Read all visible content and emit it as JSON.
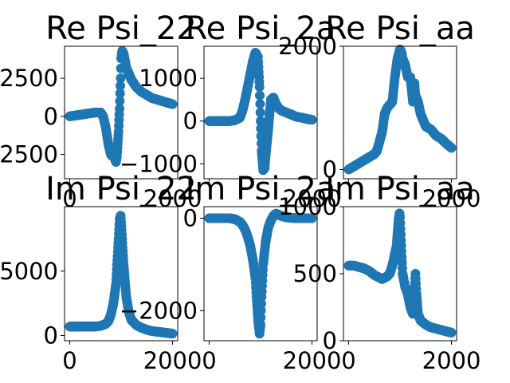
{
  "chart_data": [
    {
      "type": "scatter",
      "title": "Re Psi_22",
      "color": "#1f77b4",
      "xlim": [
        -100,
        2100
      ],
      "ylim": [
        -4100,
        4600
      ],
      "xticks": [
        {
          "value": 0,
          "label": "0"
        },
        {
          "value": 2000,
          "label": "2000"
        }
      ],
      "yticks": [
        {
          "value": -2500,
          "label": "−2500"
        },
        {
          "value": 0,
          "label": "0"
        },
        {
          "value": 2500,
          "label": "2500"
        }
      ],
      "series": [
        {
          "x": [
            0,
            100,
            200,
            300,
            400,
            500,
            600,
            650,
            700,
            750,
            800,
            820,
            850,
            880,
            900,
            920,
            950,
            970,
            990,
            1000,
            1020,
            1050,
            1100,
            1200,
            1300,
            1400,
            1500,
            1600,
            1700,
            1800,
            1900,
            2000
          ],
          "y": [
            0,
            50,
            100,
            150,
            200,
            250,
            250,
            0,
            -700,
            -1800,
            -2500,
            -2600,
            -2200,
            -2800,
            -3000,
            -2600,
            -1000,
            500,
            2500,
            3800,
            4300,
            4100,
            3200,
            2400,
            1900,
            1600,
            1400,
            1200,
            1100,
            1000,
            900,
            800
          ]
        }
      ]
    },
    {
      "type": "scatter",
      "title": "Re Psi_2a",
      "color": "#1f77b4",
      "xlim": [
        -100,
        2100
      ],
      "ylim": [
        -1350,
        1750
      ],
      "xticks": [
        {
          "value": 0,
          "label": ""
        },
        {
          "value": 2000,
          "label": "2000"
        }
      ],
      "yticks": [
        {
          "value": -1000,
          "label": "−1000"
        },
        {
          "value": 0,
          "label": "0"
        },
        {
          "value": 1000,
          "label": "1000"
        }
      ],
      "series": [
        {
          "x": [
            0,
            100,
            200,
            300,
            400,
            500,
            600,
            650,
            700,
            750,
            800,
            850,
            900,
            950,
            980,
            1000,
            1020,
            1050,
            1080,
            1100,
            1150,
            1200,
            1250,
            1300,
            1350,
            1400,
            1500,
            1600,
            1700,
            1800,
            1900,
            2000
          ],
          "y": [
            0,
            0,
            0,
            0,
            0,
            20,
            80,
            250,
            500,
            800,
            1100,
            1400,
            1600,
            1500,
            800,
            0,
            -700,
            -1150,
            -1100,
            -800,
            -200,
            500,
            550,
            400,
            300,
            250,
            200,
            150,
            100,
            80,
            50,
            30
          ]
        }
      ]
    },
    {
      "type": "scatter",
      "title": "Re Psi_aa",
      "color": "#1f77b4",
      "xlim": [
        -100,
        2100
      ],
      "ylim": [
        -150,
        2000
      ],
      "xticks": [
        {
          "value": 0,
          "label": ""
        },
        {
          "value": 2000,
          "label": "2000"
        }
      ],
      "yticks": [
        {
          "value": 0,
          "label": "0"
        },
        {
          "value": 2000,
          "label": "2000"
        }
      ],
      "series": [
        {
          "x": [
            0,
            100,
            200,
            300,
            400,
            500,
            550,
            600,
            650,
            700,
            750,
            800,
            850,
            900,
            950,
            1000,
            1030,
            1050,
            1100,
            1150,
            1200,
            1250,
            1280,
            1300,
            1350,
            1400,
            1450,
            1500,
            1600,
            1700,
            1800,
            1900,
            2000
          ],
          "y": [
            0,
            50,
            100,
            150,
            200,
            250,
            300,
            450,
            600,
            900,
            1000,
            1050,
            1100,
            1500,
            1800,
            1950,
            1900,
            1800,
            1700,
            1500,
            1500,
            1100,
            1400,
            1200,
            1100,
            900,
            800,
            700,
            650,
            550,
            500,
            420,
            350
          ]
        }
      ]
    },
    {
      "type": "scatter",
      "title": "Im Psi_22",
      "color": "#1f77b4",
      "xlim": [
        -100,
        2100
      ],
      "ylim": [
        -400,
        10000
      ],
      "xticks": [
        {
          "value": 0,
          "label": "0"
        },
        {
          "value": 2000,
          "label": "2000"
        }
      ],
      "yticks": [
        {
          "value": 0,
          "label": "0"
        },
        {
          "value": 5000,
          "label": "5000"
        }
      ],
      "series": [
        {
          "x": [
            0,
            100,
            200,
            300,
            400,
            500,
            600,
            700,
            750,
            800,
            850,
            900,
            920,
            950,
            970,
            990,
            1000,
            1020,
            1050,
            1080,
            1100,
            1150,
            1200,
            1300,
            1400,
            1500,
            1600,
            1700,
            1800,
            1900,
            2000
          ],
          "y": [
            700,
            700,
            700,
            700,
            700,
            700,
            750,
            900,
            1100,
            1600,
            2500,
            4000,
            5500,
            7500,
            9000,
            9300,
            8800,
            7500,
            5500,
            4000,
            3000,
            1800,
            1200,
            800,
            600,
            450,
            350,
            300,
            250,
            200,
            150
          ]
        }
      ]
    },
    {
      "type": "scatter",
      "title": "Im Psi_2a",
      "color": "#1f77b4",
      "xlim": [
        -100,
        2100
      ],
      "ylim": [
        -2650,
        250
      ],
      "xticks": [
        {
          "value": 0,
          "label": "0"
        },
        {
          "value": 2000,
          "label": "2000"
        }
      ],
      "yticks": [
        {
          "value": -2000,
          "label": "−2000"
        },
        {
          "value": 0,
          "label": "0"
        }
      ],
      "series": [
        {
          "x": [
            0,
            100,
            200,
            300,
            400,
            500,
            600,
            650,
            700,
            750,
            800,
            850,
            900,
            920,
            950,
            980,
            1000,
            1020,
            1050,
            1100,
            1150,
            1200,
            1250,
            1300,
            1400,
            1500,
            1600,
            1700,
            1800,
            1900,
            2000
          ],
          "y": [
            0,
            0,
            0,
            0,
            0,
            -20,
            -80,
            -150,
            -250,
            -400,
            -600,
            -900,
            -1300,
            -1700,
            -2200,
            -2500,
            -2300,
            -1700,
            -1000,
            -500,
            -200,
            -50,
            50,
            100,
            50,
            20,
            10,
            0,
            0,
            0,
            0
          ]
        }
      ]
    },
    {
      "type": "scatter",
      "title": "Im Psi_aa",
      "color": "#1f77b4",
      "xlim": [
        -100,
        2100
      ],
      "ylim": [
        0,
        1000
      ],
      "xticks": [
        {
          "value": 0,
          "label": "0"
        },
        {
          "value": 2000,
          "label": "2000"
        }
      ],
      "yticks": [
        {
          "value": 0,
          "label": "0"
        },
        {
          "value": 500,
          "label": "500"
        },
        {
          "value": 1000,
          "label": "1000"
        }
      ],
      "series": [
        {
          "x": [
            0,
            100,
            200,
            300,
            400,
            500,
            600,
            650,
            700,
            750,
            800,
            850,
            900,
            930,
            950,
            970,
            990,
            1000,
            1020,
            1050,
            1100,
            1150,
            1200,
            1250,
            1270,
            1300,
            1320,
            1350,
            1400,
            1500,
            1600,
            1700,
            1800,
            1900,
            2000
          ],
          "y": [
            560,
            560,
            550,
            540,
            520,
            490,
            470,
            460,
            470,
            480,
            500,
            560,
            650,
            700,
            800,
            900,
            950,
            920,
            750,
            500,
            400,
            350,
            250,
            200,
            300,
            500,
            350,
            200,
            150,
            120,
            100,
            90,
            80,
            70,
            60
          ]
        }
      ]
    }
  ]
}
